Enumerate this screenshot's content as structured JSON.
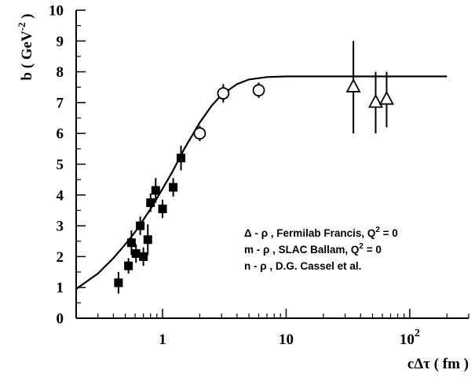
{
  "chart_data": {
    "type": "scatter",
    "title": "",
    "xlabel": "cΔτ ( fm )",
    "ylabel": "b ( GeV",
    "ylabel_sup": "-2",
    "ylabel_end": " )",
    "x_scale": "log",
    "xlim": [
      0.2,
      300
    ],
    "ylim": [
      0,
      10
    ],
    "x_tick_labels": [
      {
        "value": 1,
        "label": "1"
      },
      {
        "value": 10,
        "label": "10"
      },
      {
        "value": 100,
        "label": "10",
        "sup": "2"
      }
    ],
    "y_ticks": [
      0,
      1,
      2,
      3,
      4,
      5,
      6,
      7,
      8,
      9,
      10
    ],
    "grid": false,
    "legend_position": "bottom-right",
    "series": [
      {
        "marker": "filled-square",
        "legend": {
          "part1": "n - ρ , D.G. Cassel et al."
        },
        "points": [
          {
            "x": 0.44,
            "y": 1.15,
            "err": 0.35
          },
          {
            "x": 0.53,
            "y": 1.7,
            "err": 0.25
          },
          {
            "x": 0.56,
            "y": 2.45,
            "err": 0.4
          },
          {
            "x": 0.61,
            "y": 2.1,
            "err": 0.3
          },
          {
            "x": 0.66,
            "y": 3.0,
            "err": 0.3
          },
          {
            "x": 0.7,
            "y": 2.0,
            "err": 0.3
          },
          {
            "x": 0.76,
            "y": 2.55,
            "err": 0.5
          },
          {
            "x": 0.8,
            "y": 3.75,
            "err": 0.3
          },
          {
            "x": 0.88,
            "y": 4.15,
            "err": 0.4
          },
          {
            "x": 1.0,
            "y": 3.55,
            "err": 0.3
          },
          {
            "x": 1.22,
            "y": 4.25,
            "err": 0.3
          },
          {
            "x": 1.41,
            "y": 5.2,
            "err": 0.4
          }
        ]
      },
      {
        "marker": "open-circle",
        "legend": {
          "part1": "m - ρ , SLAC Ballam, Q",
          "sup": "2",
          "part2": " = 0"
        },
        "points": [
          {
            "x": 2.0,
            "y": 6.0,
            "err": 0.25
          },
          {
            "x": 3.1,
            "y": 7.3,
            "err": 0.3
          },
          {
            "x": 6.0,
            "y": 7.4,
            "err": 0.25
          }
        ]
      },
      {
        "marker": "open-triangle",
        "legend": {
          "part1": "Δ - ρ , Fermilab Francis, Q",
          "sup": "2",
          "part2": " = 0"
        },
        "points": [
          {
            "x": 35,
            "y": 7.5,
            "err": 1.5
          },
          {
            "x": 53,
            "y": 7.0,
            "err": 1.0
          },
          {
            "x": 65,
            "y": 7.1,
            "err": 0.9
          }
        ]
      }
    ],
    "curve": {
      "type": "line",
      "points": [
        [
          0.2,
          0.95
        ],
        [
          0.3,
          1.45
        ],
        [
          0.4,
          1.95
        ],
        [
          0.5,
          2.4
        ],
        [
          0.6,
          2.8
        ],
        [
          0.7,
          3.2
        ],
        [
          0.8,
          3.55
        ],
        [
          1.0,
          4.2
        ],
        [
          1.2,
          4.75
        ],
        [
          1.5,
          5.5
        ],
        [
          2.0,
          6.35
        ],
        [
          2.5,
          6.9
        ],
        [
          3.0,
          7.25
        ],
        [
          4.0,
          7.6
        ],
        [
          5.0,
          7.75
        ],
        [
          7.0,
          7.83
        ],
        [
          10,
          7.85
        ],
        [
          20,
          7.85
        ],
        [
          200,
          7.85
        ]
      ]
    }
  }
}
